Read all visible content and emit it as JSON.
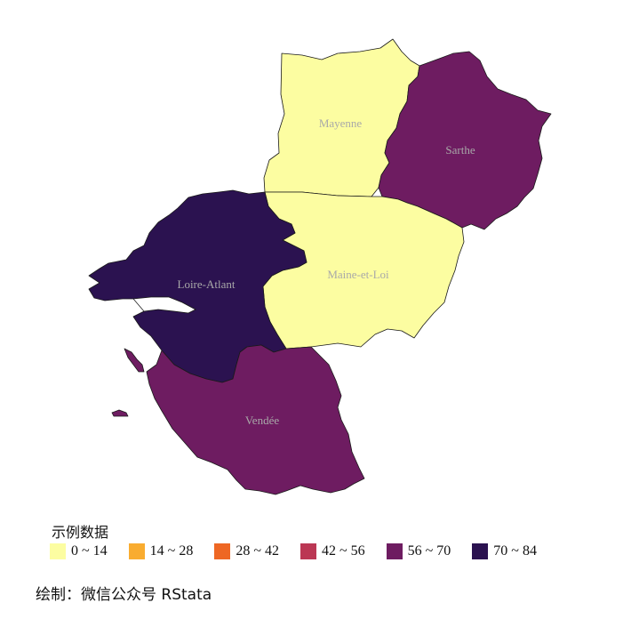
{
  "legend": {
    "title": "示例数据",
    "items": [
      {
        "label": "0 ~ 14",
        "color": "#FCFDA1"
      },
      {
        "label": "14 ~ 28",
        "color": "#F9AC30"
      },
      {
        "label": "28 ~ 42",
        "color": "#EE6724"
      },
      {
        "label": "42 ~ 56",
        "color": "#BB3754"
      },
      {
        "label": "56 ~ 70",
        "color": "#6E1C61"
      },
      {
        "label": "70 ~ 84",
        "color": "#2B1250"
      }
    ]
  },
  "regions": [
    {
      "id": "mayenne",
      "label": "Mayenne",
      "color": "#FCFDA1",
      "class": "0 ~ 14"
    },
    {
      "id": "sarthe",
      "label": "Sarthe",
      "color": "#6E1C61",
      "class": "56 ~ 70"
    },
    {
      "id": "maine-et-loire",
      "label": "Maine-et-Loi",
      "color": "#FCFDA1",
      "class": "0 ~ 14"
    },
    {
      "id": "loire-atlantique",
      "label": "Loire-Atlant",
      "color": "#2B1250",
      "class": "70 ~ 84"
    },
    {
      "id": "vendee",
      "label": "Vendée",
      "color": "#6E1C61",
      "class": "56 ~ 70"
    }
  ],
  "caption": "绘制：微信公众号 RStata"
}
